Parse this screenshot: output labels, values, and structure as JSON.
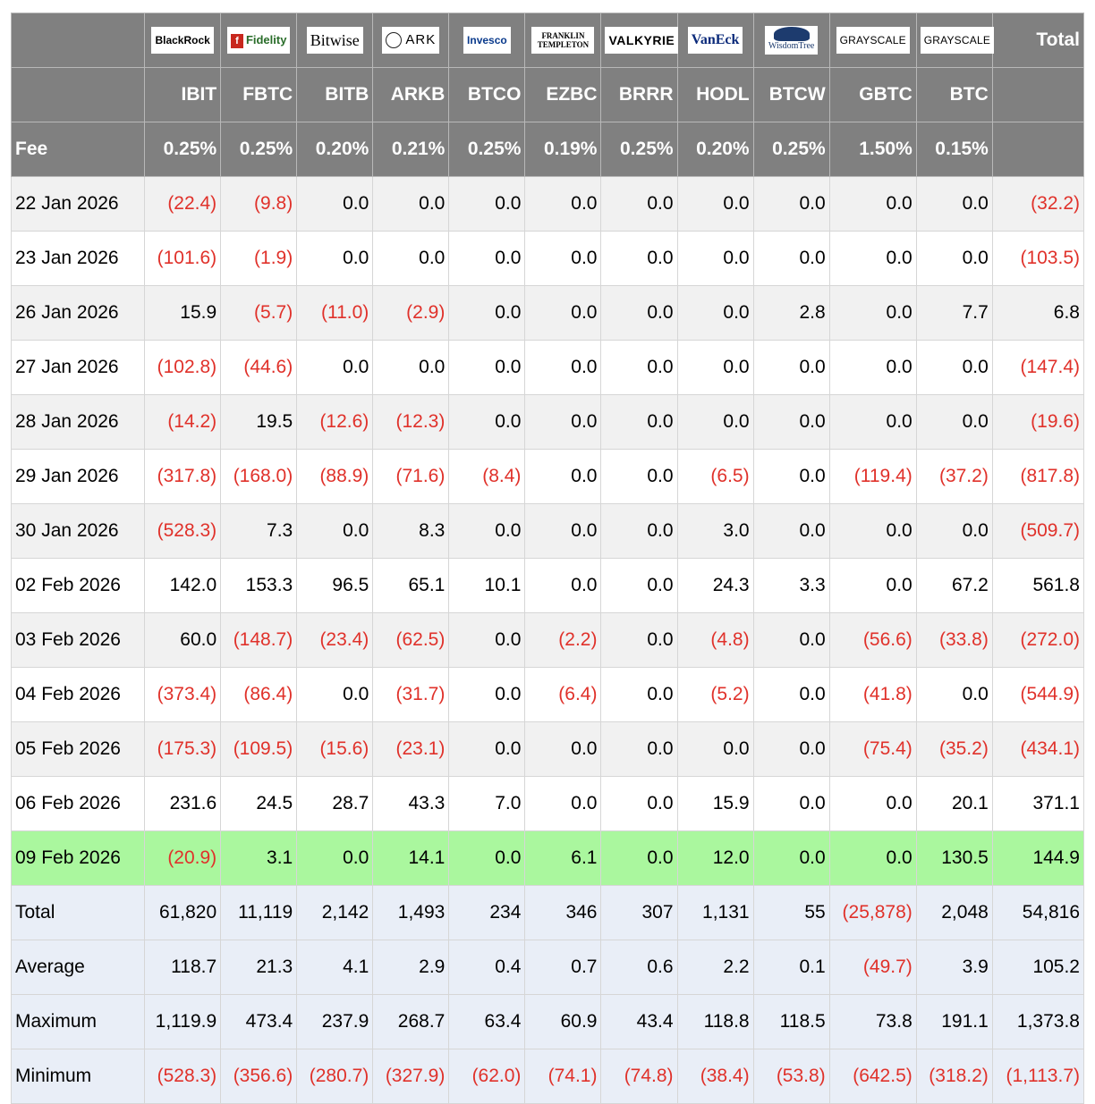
{
  "header": {
    "total_label": "Total",
    "fee_label": "Fee",
    "funds": [
      {
        "issuer": "BlackRock",
        "logo_icon": "blackrock-logo",
        "ticker": "IBIT",
        "fee": "0.25%"
      },
      {
        "issuer": "Fidelity",
        "logo_icon": "fidelity-logo",
        "ticker": "FBTC",
        "fee": "0.25%"
      },
      {
        "issuer": "Bitwise",
        "logo_icon": "bitwise-logo",
        "ticker": "BITB",
        "fee": "0.20%"
      },
      {
        "issuer": "ARK",
        "logo_icon": "ark-invest-logo",
        "ticker": "ARKB",
        "fee": "0.21%"
      },
      {
        "issuer": "Invesco",
        "logo_icon": "invesco-logo",
        "ticker": "BTCO",
        "fee": "0.25%"
      },
      {
        "issuer": "FRANKLIN TEMPLETON",
        "logo_icon": "franklin-templeton-logo",
        "ticker": "EZBC",
        "fee": "0.19%"
      },
      {
        "issuer": "VALKYRIE",
        "logo_icon": "valkyrie-logo",
        "ticker": "BRRR",
        "fee": "0.25%"
      },
      {
        "issuer": "VanEck",
        "logo_icon": "vaneck-logo",
        "ticker": "HODL",
        "fee": "0.20%"
      },
      {
        "issuer": "WisdomTree",
        "logo_icon": "wisdomtree-logo",
        "ticker": "BTCW",
        "fee": "0.25%"
      },
      {
        "issuer": "GRAYSCALE",
        "logo_icon": "grayscale-logo",
        "ticker": "GBTC",
        "fee": "1.50%"
      },
      {
        "issuer": "GRAYSCALE",
        "logo_icon": "grayscale-logo",
        "ticker": "BTC",
        "fee": "0.15%"
      }
    ]
  },
  "rows": [
    {
      "date": "22 Jan 2026",
      "values": [
        "(22.4)",
        "(9.8)",
        "0.0",
        "0.0",
        "0.0",
        "0.0",
        "0.0",
        "0.0",
        "0.0",
        "0.0",
        "0.0"
      ],
      "total": "(32.2)"
    },
    {
      "date": "23 Jan 2026",
      "values": [
        "(101.6)",
        "(1.9)",
        "0.0",
        "0.0",
        "0.0",
        "0.0",
        "0.0",
        "0.0",
        "0.0",
        "0.0",
        "0.0"
      ],
      "total": "(103.5)"
    },
    {
      "date": "26 Jan 2026",
      "values": [
        "15.9",
        "(5.7)",
        "(11.0)",
        "(2.9)",
        "0.0",
        "0.0",
        "0.0",
        "0.0",
        "2.8",
        "0.0",
        "7.7"
      ],
      "total": "6.8"
    },
    {
      "date": "27 Jan 2026",
      "values": [
        "(102.8)",
        "(44.6)",
        "0.0",
        "0.0",
        "0.0",
        "0.0",
        "0.0",
        "0.0",
        "0.0",
        "0.0",
        "0.0"
      ],
      "total": "(147.4)"
    },
    {
      "date": "28 Jan 2026",
      "values": [
        "(14.2)",
        "19.5",
        "(12.6)",
        "(12.3)",
        "0.0",
        "0.0",
        "0.0",
        "0.0",
        "0.0",
        "0.0",
        "0.0"
      ],
      "total": "(19.6)"
    },
    {
      "date": "29 Jan 2026",
      "values": [
        "(317.8)",
        "(168.0)",
        "(88.9)",
        "(71.6)",
        "(8.4)",
        "0.0",
        "0.0",
        "(6.5)",
        "0.0",
        "(119.4)",
        "(37.2)"
      ],
      "total": "(817.8)"
    },
    {
      "date": "30 Jan 2026",
      "values": [
        "(528.3)",
        "7.3",
        "0.0",
        "8.3",
        "0.0",
        "0.0",
        "0.0",
        "3.0",
        "0.0",
        "0.0",
        "0.0"
      ],
      "total": "(509.7)"
    },
    {
      "date": "02 Feb 2026",
      "values": [
        "142.0",
        "153.3",
        "96.5",
        "65.1",
        "10.1",
        "0.0",
        "0.0",
        "24.3",
        "3.3",
        "0.0",
        "67.2"
      ],
      "total": "561.8"
    },
    {
      "date": "03 Feb 2026",
      "values": [
        "60.0",
        "(148.7)",
        "(23.4)",
        "(62.5)",
        "0.0",
        "(2.2)",
        "0.0",
        "(4.8)",
        "0.0",
        "(56.6)",
        "(33.8)"
      ],
      "total": "(272.0)"
    },
    {
      "date": "04 Feb 2026",
      "values": [
        "(373.4)",
        "(86.4)",
        "0.0",
        "(31.7)",
        "0.0",
        "(6.4)",
        "0.0",
        "(5.2)",
        "0.0",
        "(41.8)",
        "0.0"
      ],
      "total": "(544.9)"
    },
    {
      "date": "05 Feb 2026",
      "values": [
        "(175.3)",
        "(109.5)",
        "(15.6)",
        "(23.1)",
        "0.0",
        "0.0",
        "0.0",
        "0.0",
        "0.0",
        "(75.4)",
        "(35.2)"
      ],
      "total": "(434.1)"
    },
    {
      "date": "06 Feb 2026",
      "values": [
        "231.6",
        "24.5",
        "28.7",
        "43.3",
        "7.0",
        "0.0",
        "0.0",
        "15.9",
        "0.0",
        "0.0",
        "20.1"
      ],
      "total": "371.1"
    },
    {
      "date": "09 Feb 2026",
      "values": [
        "(20.9)",
        "3.1",
        "0.0",
        "14.1",
        "0.0",
        "6.1",
        "0.0",
        "12.0",
        "0.0",
        "0.0",
        "130.5"
      ],
      "total": "144.9",
      "highlighted": true
    }
  ],
  "summary": [
    {
      "label": "Total",
      "values": [
        "61,820",
        "11,119",
        "2,142",
        "1,493",
        "234",
        "346",
        "307",
        "1,131",
        "55",
        "(25,878)",
        "2,048"
      ],
      "total": "54,816"
    },
    {
      "label": "Average",
      "values": [
        "118.7",
        "21.3",
        "4.1",
        "2.9",
        "0.4",
        "0.7",
        "0.6",
        "2.2",
        "0.1",
        "(49.7)",
        "3.9"
      ],
      "total": "105.2"
    },
    {
      "label": "Maximum",
      "values": [
        "1,119.9",
        "473.4",
        "237.9",
        "268.7",
        "63.4",
        "60.9",
        "43.4",
        "118.8",
        "118.5",
        "73.8",
        "191.1"
      ],
      "total": "1,373.8"
    },
    {
      "label": "Minimum",
      "values": [
        "(528.3)",
        "(356.6)",
        "(280.7)",
        "(327.9)",
        "(62.0)",
        "(74.1)",
        "(74.8)",
        "(38.4)",
        "(53.8)",
        "(642.5)",
        "(318.2)"
      ],
      "total": "(1,113.7)"
    }
  ],
  "colors": {
    "header_bg": "#808080",
    "negative": "#e0312a",
    "highlight": "#aaf79e",
    "summary_bg": "#e9eef7",
    "row_alt": "#f1f1f1"
  }
}
